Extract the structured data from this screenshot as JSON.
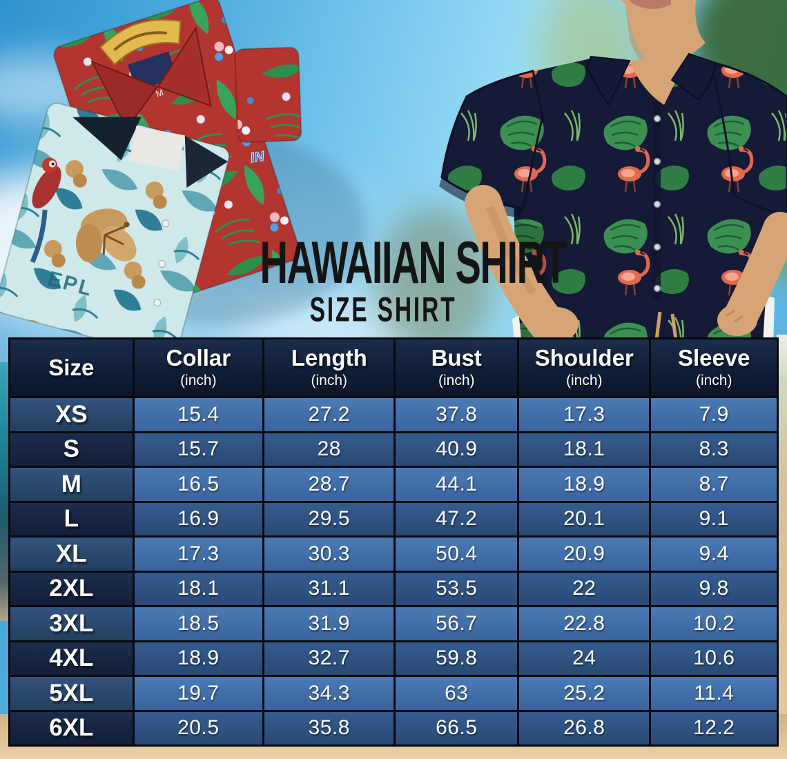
{
  "title": {
    "main": "HAWAIIAN SHIRT",
    "sub": "SIZE SHIRT"
  },
  "decor": {
    "left_photo": "folded-hawaiian-shirts-photo",
    "right_photo": "model-wearing-flamingo-hawaiian-shirt-photo",
    "red_shirt_tag_text": "M",
    "red_shirt_logo_text": "IN",
    "teal_shirt_print_text": "EPL"
  },
  "colors": {
    "header_bg": "#0f1d36",
    "row_light_data": "#4171ad",
    "row_dark_data": "#2d5384",
    "row_light_size": "#2b4a74",
    "row_dark_size": "#16263f",
    "grid_border": "#06080f",
    "table_text": "#ffffff",
    "title_text": "#141414",
    "sky_blue": "#74c4ec",
    "sand": "#e2bf93",
    "shirt_navy": "#151a36",
    "leaf_green": "#3c9152",
    "flamingo_coral": "#e4684f"
  },
  "chart_data": {
    "type": "table",
    "title": "HAWAIIAN SHIRT",
    "subtitle": "SIZE SHIRT",
    "columns": [
      {
        "label": "Size",
        "unit": ""
      },
      {
        "label": "Collar",
        "unit": "(inch)"
      },
      {
        "label": "Length",
        "unit": "(inch)"
      },
      {
        "label": "Bust",
        "unit": "(inch)"
      },
      {
        "label": "Shoulder",
        "unit": "(inch)"
      },
      {
        "label": "Sleeve",
        "unit": "(inch)"
      }
    ],
    "rows": [
      [
        "XS",
        "15.4",
        "27.2",
        "37.8",
        "17.3",
        "7.9"
      ],
      [
        "S",
        "15.7",
        "28",
        "40.9",
        "18.1",
        "8.3"
      ],
      [
        "M",
        "16.5",
        "28.7",
        "44.1",
        "18.9",
        "8.7"
      ],
      [
        "L",
        "16.9",
        "29.5",
        "47.2",
        "20.1",
        "9.1"
      ],
      [
        "XL",
        "17.3",
        "30.3",
        "50.4",
        "20.9",
        "9.4"
      ],
      [
        "2XL",
        "18.1",
        "31.1",
        "53.5",
        "22",
        "9.8"
      ],
      [
        "3XL",
        "18.5",
        "31.9",
        "56.7",
        "22.8",
        "10.2"
      ],
      [
        "4XL",
        "18.9",
        "32.7",
        "59.8",
        "24",
        "10.6"
      ],
      [
        "5XL",
        "19.7",
        "34.3",
        "63",
        "25.2",
        "11.4"
      ],
      [
        "6XL",
        "20.5",
        "35.8",
        "66.5",
        "26.8",
        "12.2"
      ]
    ]
  }
}
